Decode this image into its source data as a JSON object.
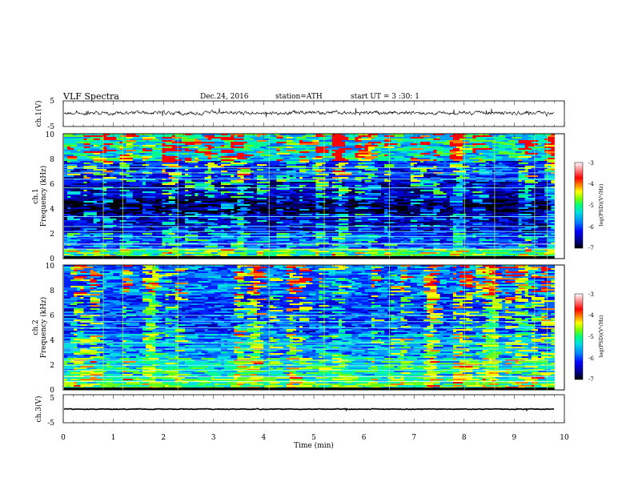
{
  "header": {
    "title": "VLF  Spectra",
    "date": "Dec.24, 2016",
    "station": "station=ATH",
    "start_ut": "start  UT  =   3  :30: 1"
  },
  "colors": {
    "spectrogram_scale": [
      "#000000",
      "#000060",
      "#0000c0",
      "#0030ff",
      "#0090ff",
      "#00e0e0",
      "#00ff80",
      "#80ff00",
      "#ffff00",
      "#ff8000",
      "#ff0000",
      "#ff9090",
      "#ffffff"
    ]
  },
  "chart_data": [
    {
      "type": "line",
      "name": "ch1-waveform",
      "ylabel": "ch.1(V)",
      "y_ticks": [
        "5",
        "-5"
      ],
      "ylim": [
        -5,
        5
      ],
      "xlim": [
        0,
        10
      ],
      "approx_mean": 0,
      "approx_range": [
        -2,
        2
      ]
    },
    {
      "type": "heatmap",
      "name": "ch1-spectrogram",
      "ylabel": "ch.1\nFrequency (kHz)",
      "y_ticks": [
        "0",
        "2",
        "4",
        "6",
        "8",
        "10"
      ],
      "ylim": [
        0,
        10
      ],
      "xlim": [
        0,
        9.8
      ],
      "colorbar": {
        "label": "log(PSD)(V²/Hz)",
        "ticks": [
          "-3",
          "-4",
          "-5",
          "-6",
          "-7"
        ],
        "range": [
          -7,
          -3
        ]
      }
    },
    {
      "type": "heatmap",
      "name": "ch2-spectrogram",
      "ylabel": "ch.2\nFrequency (kHz)",
      "y_ticks": [
        "0",
        "2",
        "4",
        "6",
        "8",
        "10"
      ],
      "ylim": [
        0,
        10
      ],
      "xlim": [
        0,
        9.8
      ],
      "colorbar": {
        "label": "log(PSD)(V²/Hz)",
        "ticks": [
          "-3",
          "-4",
          "-5",
          "-6",
          "-7"
        ],
        "range": [
          -7,
          -3
        ]
      }
    },
    {
      "type": "line",
      "name": "ch3-waveform",
      "ylabel": "ch.3(V)",
      "y_ticks": [
        "5",
        "-5"
      ],
      "ylim": [
        -5,
        5
      ],
      "xlim": [
        0,
        10
      ],
      "approx_mean": 0,
      "approx_range": [
        -0.5,
        0.5
      ]
    }
  ],
  "xaxis": {
    "label": "Time  (min)",
    "ticks": [
      "0",
      "1",
      "2",
      "3",
      "4",
      "5",
      "6",
      "7",
      "8",
      "9",
      "10"
    ],
    "xlim": [
      0,
      10
    ]
  }
}
